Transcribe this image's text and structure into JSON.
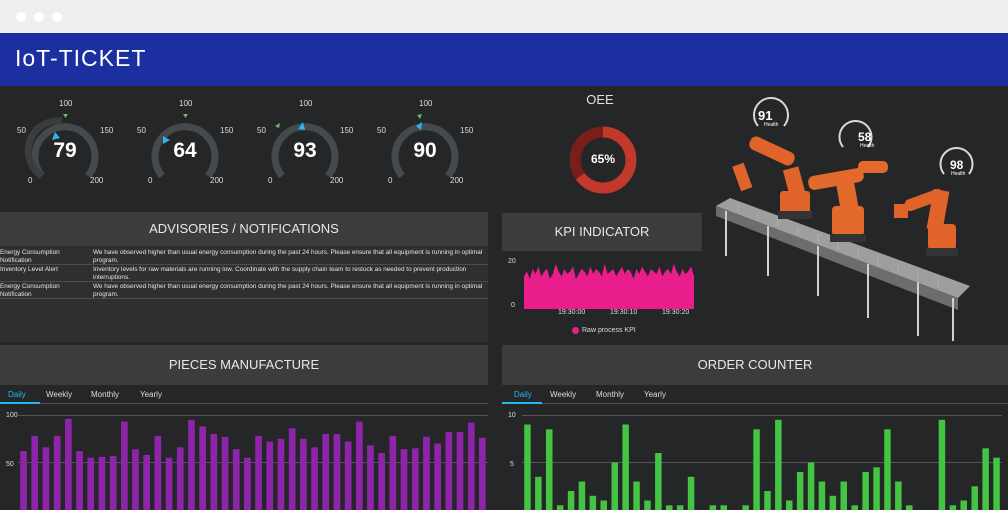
{
  "brand": {
    "logo_text": "IoT-TICKET"
  },
  "colors": {
    "brand_bar": "#1b2fa0",
    "dashboard_bg": "#252627",
    "gauge_blue": "#29b6f6",
    "gauge_green": "#66bb6a",
    "oee_ring": "#c0392b",
    "kpi_area": "#e91e8c",
    "pieces_bars": "#8e24aa",
    "order_bars": "#43c443",
    "tab_active": "#29b6f6"
  },
  "gauges": [
    {
      "value": "79",
      "min": "0",
      "t50": "50",
      "t100": "100",
      "t150": "150",
      "max": "200"
    },
    {
      "value": "64",
      "min": "0",
      "t50": "50",
      "t100": "100",
      "t150": "150",
      "max": "200"
    },
    {
      "value": "93",
      "min": "0",
      "t50": "50",
      "t100": "100",
      "t150": "150",
      "max": "200"
    },
    {
      "value": "90",
      "min": "0",
      "t50": "50",
      "t100": "100",
      "t150": "150",
      "max": "200"
    }
  ],
  "oee": {
    "title": "OEE",
    "value": "65%",
    "fraction": 0.65
  },
  "robot_gauges": [
    {
      "value": "91",
      "label": "Health"
    },
    {
      "value": "58",
      "label": "Health"
    },
    {
      "value": "98",
      "label": "Health"
    }
  ],
  "advisories": {
    "title": "ADVISORIES / NOTIFICATIONS",
    "rows": [
      {
        "category": "Energy Consumption Notification",
        "message": "We have observed higher than usual energy consumption during the past 24 hours. Please ensure that all equipment is running in optimal program."
      },
      {
        "category": "Inventory Level Alert",
        "message": "Inventory levels for raw materials are running low. Coordinate with the supply chain team to restock as needed to prevent production interruptions."
      },
      {
        "category": "Energy Consumption Notification",
        "message": "We have observed higher than usual energy consumption during the past 24 hours. Please ensure that all equipment is running in optimal program."
      }
    ]
  },
  "kpi": {
    "title": "KPI INDICATOR",
    "y_top": "20",
    "y_bottom": "0",
    "x_ticks": [
      "19:30:00",
      "19:30:10",
      "19:30:20"
    ],
    "legend": "Raw process KPI"
  },
  "pieces": {
    "title": "PIECES MANUFACTURE",
    "tabs": [
      "Daily",
      "Weekly",
      "Monthly",
      "Yearly"
    ],
    "y_ticks": [
      "100",
      "50"
    ]
  },
  "orders": {
    "title": "ORDER COUNTER",
    "tabs": [
      "Daily",
      "Weekly",
      "Monthly",
      "Yearly"
    ],
    "y_ticks": [
      "10",
      "5"
    ]
  },
  "chart_data": [
    {
      "type": "area",
      "title": "KPI INDICATOR",
      "series": [
        {
          "name": "Raw process KPI",
          "values": [
            13,
            15,
            12,
            16,
            14,
            17,
            13,
            15,
            16,
            12,
            14,
            18,
            15,
            13,
            16,
            14,
            15,
            17,
            12,
            14,
            16,
            15,
            13,
            17,
            14,
            16,
            15,
            13,
            18,
            14,
            15,
            16,
            13,
            15,
            17,
            14,
            16,
            15,
            12,
            16,
            14,
            17,
            15,
            13,
            16,
            15,
            14,
            17,
            13,
            15,
            16,
            14,
            18,
            15,
            13,
            16,
            14,
            15,
            17,
            13
          ]
        }
      ],
      "x_ticks": [
        "19:30:00",
        "19:30:10",
        "19:30:20"
      ],
      "ylim": [
        0,
        20
      ]
    },
    {
      "type": "bar",
      "title": "PIECES MANUFACTURE",
      "values": [
        62,
        78,
        66,
        78,
        96,
        62,
        55,
        56,
        57,
        93,
        64,
        58,
        78,
        55,
        66,
        95,
        88,
        80,
        77,
        64,
        55,
        78,
        72,
        75,
        86,
        75,
        66,
        80,
        80,
        72,
        93,
        68,
        60,
        78,
        64,
        65,
        77,
        70,
        82,
        82,
        92,
        76
      ],
      "ylim": [
        0,
        100
      ],
      "y_ticks": [
        "100",
        "50"
      ]
    },
    {
      "type": "bar",
      "title": "ORDER COUNTER",
      "values": [
        9,
        3.5,
        8.5,
        0.5,
        2,
        3,
        1.5,
        1,
        5,
        9,
        3,
        1,
        6,
        0.5,
        0.5,
        3.5,
        0,
        0.5,
        0.5,
        0,
        0.5,
        8.5,
        2,
        9.5,
        1,
        4,
        5,
        3,
        1.5,
        3,
        0.5,
        4,
        4.5,
        8.5,
        3,
        0.5,
        0,
        0,
        9.5,
        0.5,
        1,
        2.5,
        6.5,
        5.5
      ],
      "ylim": [
        0,
        10
      ],
      "y_ticks": [
        "10",
        "5"
      ]
    }
  ]
}
